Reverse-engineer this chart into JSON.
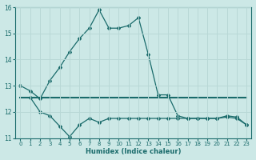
{
  "xlabel": "Humidex (Indice chaleur)",
  "background_color": "#cce8e6",
  "line_color": "#1a6b6b",
  "grid_color": "#b8d8d6",
  "xlim": [
    -0.5,
    23.5
  ],
  "ylim": [
    11,
    16
  ],
  "yticks": [
    11,
    12,
    13,
    14,
    15,
    16
  ],
  "xticks": [
    0,
    1,
    2,
    3,
    4,
    5,
    6,
    7,
    8,
    9,
    10,
    11,
    12,
    13,
    14,
    15,
    16,
    17,
    18,
    19,
    20,
    21,
    22,
    23
  ],
  "line1_x": [
    0,
    1,
    2,
    3,
    4,
    5,
    6,
    7,
    8,
    9,
    10,
    11,
    12,
    13,
    14,
    15,
    16,
    17,
    18,
    19,
    20,
    21,
    22,
    23
  ],
  "line1_y": [
    13.0,
    12.8,
    12.5,
    13.2,
    13.7,
    14.3,
    14.8,
    15.2,
    15.9,
    15.2,
    15.2,
    15.3,
    15.6,
    14.2,
    12.65,
    12.65,
    11.85,
    11.75,
    11.75,
    11.75,
    11.75,
    11.8,
    11.75,
    11.5
  ],
  "line2_x": [
    0,
    1,
    2,
    3,
    4,
    5,
    6,
    7,
    8,
    9,
    10,
    11,
    12,
    13,
    14,
    15,
    16,
    17,
    18,
    19,
    20,
    21,
    22,
    23
  ],
  "line2_y": [
    12.55,
    12.55,
    12.55,
    12.55,
    12.55,
    12.55,
    12.55,
    12.55,
    12.55,
    12.55,
    12.55,
    12.55,
    12.55,
    12.55,
    12.55,
    12.55,
    12.55,
    12.55,
    12.55,
    12.55,
    12.55,
    12.55,
    12.55,
    12.55
  ],
  "line3_x": [
    1,
    2,
    3,
    4,
    5,
    6,
    7,
    8,
    9,
    10,
    11,
    12,
    13,
    14,
    15,
    16,
    17,
    18,
    19,
    20,
    21,
    22,
    23
  ],
  "line3_y": [
    12.55,
    12.0,
    11.85,
    11.45,
    11.05,
    11.5,
    11.75,
    11.6,
    11.75,
    11.75,
    11.75,
    11.75,
    11.75,
    11.75,
    11.75,
    11.75,
    11.75,
    11.75,
    11.75,
    11.75,
    11.85,
    11.8,
    11.5
  ]
}
